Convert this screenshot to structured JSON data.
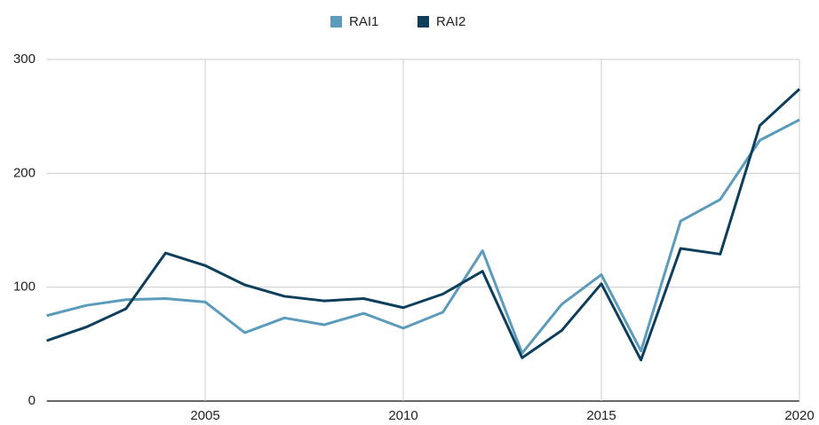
{
  "chart_data": {
    "type": "line",
    "x": [
      2001,
      2002,
      2003,
      2004,
      2005,
      2006,
      2007,
      2008,
      2009,
      2010,
      2011,
      2012,
      2013,
      2014,
      2015,
      2016,
      2017,
      2018,
      2019,
      2020
    ],
    "series": [
      {
        "name": "RAI1",
        "color": "#5b9bbb",
        "values": [
          75,
          84,
          89,
          90,
          87,
          60,
          73,
          67,
          77,
          64,
          78,
          132,
          42,
          85,
          111,
          44,
          158,
          177,
          229,
          247
        ]
      },
      {
        "name": "RAI2",
        "color": "#0d3f5c",
        "values": [
          53,
          65,
          81,
          130,
          119,
          102,
          92,
          88,
          90,
          82,
          94,
          114,
          38,
          62,
          103,
          36,
          134,
          129,
          242,
          274
        ]
      }
    ],
    "xlim": [
      2001,
      2020
    ],
    "xticks": [
      2005,
      2010,
      2015,
      2020
    ],
    "ylim": [
      0,
      300
    ],
    "yticks": [
      0,
      100,
      200,
      300
    ],
    "grid": true,
    "legend": "top"
  }
}
